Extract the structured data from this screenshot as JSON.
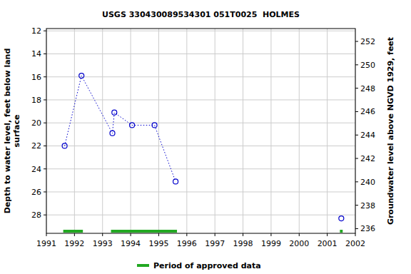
{
  "chart_data": {
    "type": "line",
    "title": "USGS 330430089534301 051T0025  HOLMES",
    "ylabel": [
      "Depth to water level, feet below land",
      "surface"
    ],
    "y2label": "Groundwater level above NGVD 1929, feet",
    "xlim": [
      1991,
      2002
    ],
    "xticks": [
      1991,
      1992,
      1993,
      1994,
      1995,
      1996,
      1997,
      1998,
      1999,
      2000,
      2001,
      2002
    ],
    "ylim": [
      29.6,
      11.8
    ],
    "yticks": [
      12,
      14,
      16,
      18,
      20,
      22,
      24,
      26,
      28
    ],
    "y2lim": [
      235.6,
      253.1
    ],
    "y2ticks": [
      236,
      238,
      240,
      242,
      244,
      246,
      248,
      250,
      252
    ],
    "grid": true,
    "series": [
      {
        "name": "Depth to water level",
        "color": "#0000cc",
        "marker": "circle",
        "line_style": "dotted",
        "x": [
          1991.65,
          1992.25,
          1993.35,
          1993.42,
          1994.05,
          1994.85,
          1995.6,
          null,
          2001.5
        ],
        "values": [
          22.0,
          15.9,
          20.9,
          19.1,
          20.2,
          20.2,
          25.1,
          null,
          28.3
        ]
      }
    ],
    "approved_periods": {
      "name": "Period of approved data",
      "color": "#22a822",
      "start": [
        1991.6,
        1993.3,
        2001.45
      ],
      "end": [
        1992.3,
        1995.65,
        2001.55
      ]
    }
  }
}
